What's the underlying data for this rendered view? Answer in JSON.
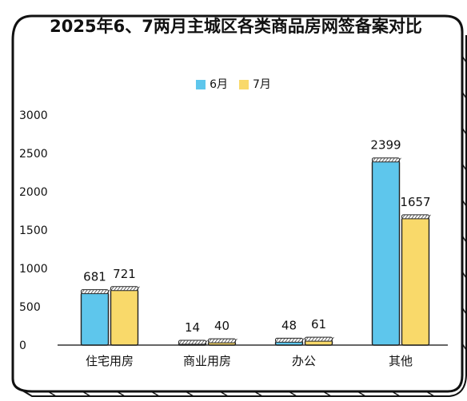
{
  "chart_data": {
    "type": "bar",
    "title": "2025年6、7两月主城区各类商品房网签备案对比",
    "categories": [
      "住宅用房",
      "商业用房",
      "办公",
      "其他"
    ],
    "series": [
      {
        "name": "6月",
        "values": [
          681,
          14,
          48,
          2399
        ],
        "color": "#5ec6ec"
      },
      {
        "name": "7月",
        "values": [
          721,
          40,
          61,
          1657
        ],
        "color": "#f9d96a"
      }
    ],
    "y_ticks": [
      "0",
      "500",
      "1000",
      "1500",
      "2000",
      "2500",
      "3000"
    ],
    "ylim": [
      0,
      3000
    ],
    "legend_position": "top",
    "grid": false
  }
}
